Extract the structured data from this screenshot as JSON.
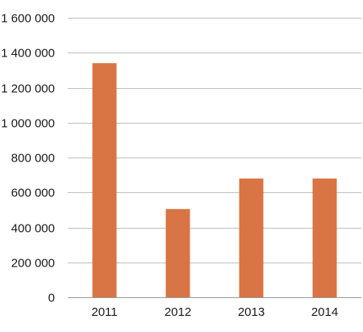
{
  "chart_data": {
    "type": "bar",
    "categories": [
      "2011",
      "2012",
      "2013",
      "2014"
    ],
    "values": [
      1340000,
      505000,
      680000,
      680000
    ],
    "ylim": [
      0,
      1600000
    ],
    "yticks": [
      {
        "value": 0,
        "label": "0"
      },
      {
        "value": 200000,
        "label": "200 000"
      },
      {
        "value": 400000,
        "label": "400 000"
      },
      {
        "value": 600000,
        "label": "600 000"
      },
      {
        "value": 800000,
        "label": "800 000"
      },
      {
        "value": 1000000,
        "label": "1 000 000"
      },
      {
        "value": 1200000,
        "label": "1 200 000"
      },
      {
        "value": 1400000,
        "label": "1 400 000"
      },
      {
        "value": 1600000,
        "label": "1 600 000"
      }
    ],
    "grid": true,
    "legend": "none",
    "bar_color": "#d97444"
  }
}
